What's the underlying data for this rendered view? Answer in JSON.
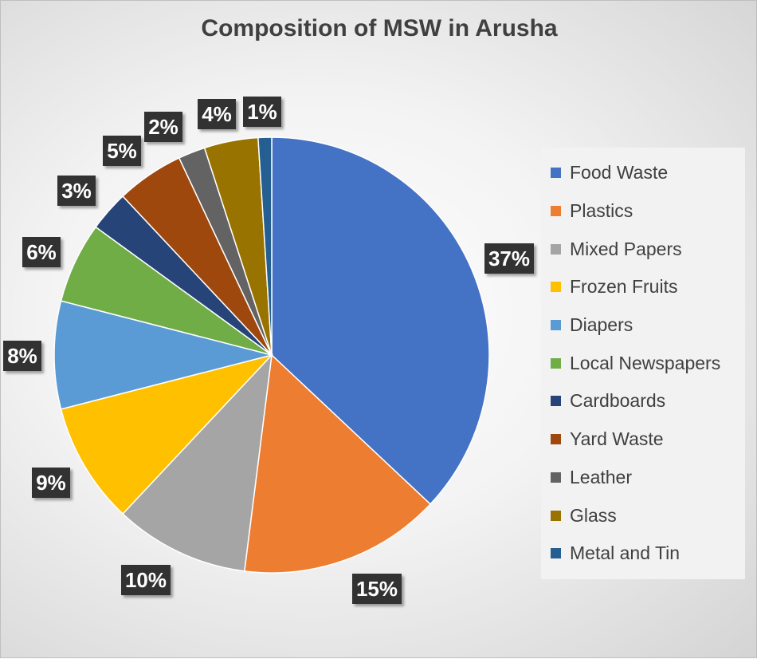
{
  "chart_data": {
    "type": "pie",
    "title": "Composition of MSW in Arusha",
    "categories": [
      "Food Waste",
      "Plastics",
      "Mixed Papers",
      "Frozen Fruits",
      "Diapers",
      "Local Newspapers",
      "Cardboards",
      "Yard Waste",
      "Leather",
      "Glass",
      "Metal and Tin"
    ],
    "values": [
      37,
      15,
      10,
      9,
      8,
      6,
      3,
      5,
      2,
      4,
      1
    ],
    "data_labels": [
      "37%",
      "15%",
      "10%",
      "9%",
      "8%",
      "6%",
      "3%",
      "5%",
      "2%",
      "4%",
      "1%"
    ],
    "colors": [
      "#4472C4",
      "#ED7D31",
      "#A5A5A5",
      "#FFC000",
      "#5B9BD5",
      "#70AD47",
      "#264478",
      "#9E480E",
      "#636363",
      "#997300",
      "#255E91"
    ],
    "legend_position": "right"
  }
}
